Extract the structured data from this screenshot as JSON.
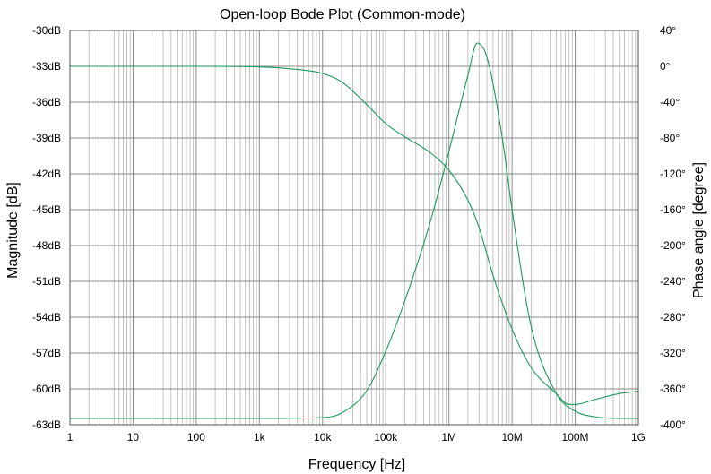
{
  "chart_data": {
    "type": "line",
    "title": "Open-loop Bode Plot (Common-mode)",
    "xlabel": "Frequency [Hz]",
    "ylabel_left": "Magnitude [dB]",
    "ylabel_right": "Phase angle [degree]",
    "x_scale": "log",
    "xlim": [
      1,
      1000000000
    ],
    "ylim_left": [
      -63,
      -30
    ],
    "ylim_right": [
      -400,
      40
    ],
    "grid": true,
    "x_tick_labels": [
      "1",
      "10",
      "100",
      "1k",
      "10k",
      "100k",
      "1M",
      "10M",
      "100M",
      "1G"
    ],
    "y_left_tick_labels": [
      "-30dB",
      "-33dB",
      "-36dB",
      "-39dB",
      "-42dB",
      "-45dB",
      "-48dB",
      "-51dB",
      "-54dB",
      "-57dB",
      "-60dB",
      "-63dB"
    ],
    "y_right_tick_labels": [
      "40°",
      "0°",
      "-40°",
      "-80°",
      "-120°",
      "-160°",
      "-200°",
      "-240°",
      "-280°",
      "-320°",
      "-360°",
      "-400°"
    ],
    "series": [
      {
        "axis": "left",
        "color": "#1a9a5a",
        "x": [
          1,
          10,
          100,
          1000,
          3000,
          10000,
          20000,
          50000,
          100000,
          200000,
          500000,
          1000000,
          2000000,
          3000000,
          5000000,
          10000000,
          20000000,
          50000000,
          80000000,
          100000000,
          200000000,
          500000000,
          1000000000
        ],
        "values": [
          -33,
          -33,
          -33,
          -33.05,
          -33.2,
          -33.6,
          -34.3,
          -36.2,
          -37.8,
          -38.9,
          -40.2,
          -41.7,
          -44.2,
          -46.5,
          -50.5,
          -55,
          -58.2,
          -60.4,
          -61.3,
          -61.3,
          -60.9,
          -60.4,
          -60.2
        ]
      },
      {
        "axis": "right",
        "color": "#1a9a5a",
        "x": [
          1,
          100,
          1000,
          10000,
          20000,
          50000,
          100000,
          200000,
          500000,
          1000000,
          2000000,
          2800000,
          4000000,
          7000000,
          10000000,
          20000000,
          50000000,
          100000000,
          200000000,
          500000000,
          1000000000
        ],
        "values": [
          -393,
          -393,
          -393,
          -392,
          -387,
          -362,
          -318,
          -262,
          -175,
          -95,
          -10,
          26,
          10,
          -80,
          -160,
          -290,
          -365,
          -385,
          -391,
          -393,
          -393
        ]
      }
    ]
  }
}
